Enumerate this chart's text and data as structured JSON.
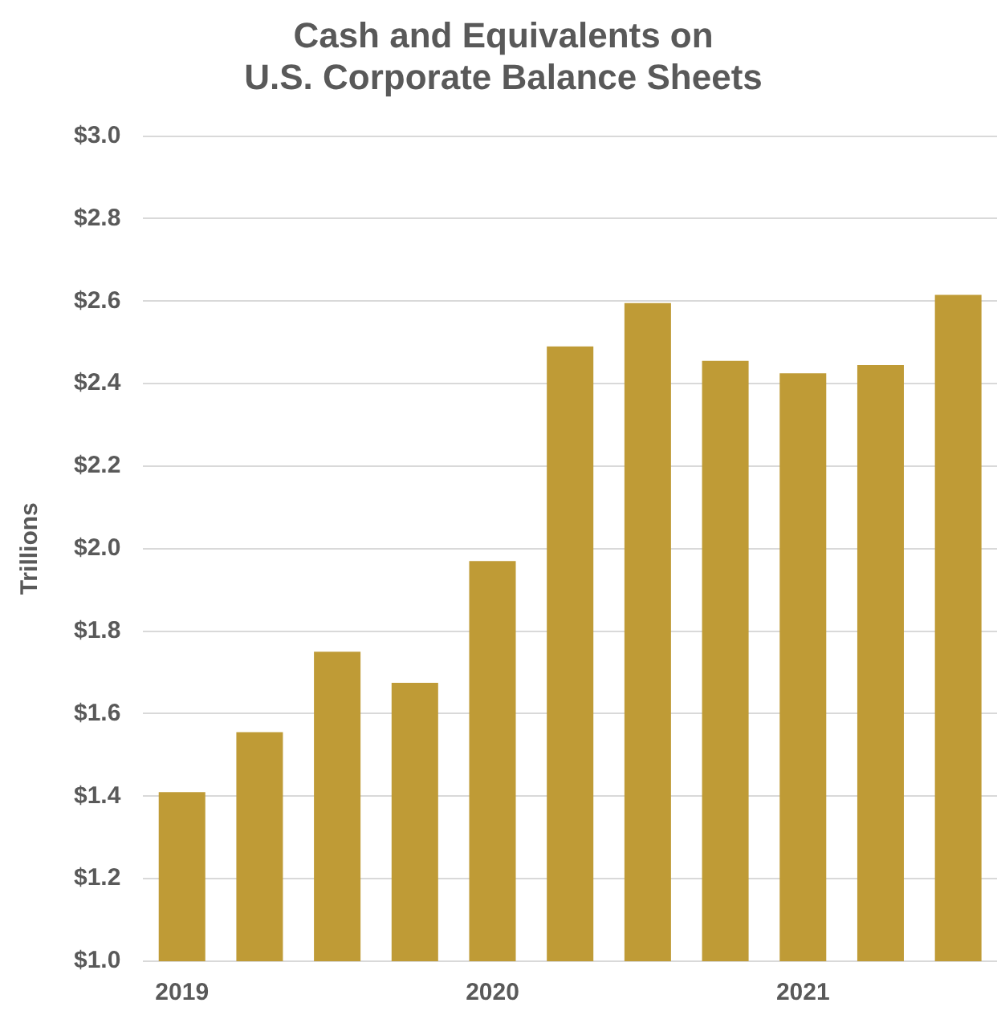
{
  "chart_data": {
    "type": "bar",
    "title": [
      "Cash and Equivalents on",
      "U.S. Corporate Balance Sheets"
    ],
    "ylabel": "Trillions",
    "categories": [
      "2019",
      null,
      null,
      null,
      "2020",
      null,
      null,
      null,
      "2021",
      null,
      null
    ],
    "values": [
      1.41,
      1.555,
      1.75,
      1.675,
      1.97,
      2.49,
      2.595,
      2.455,
      2.425,
      2.445,
      2.615
    ],
    "color": "#bf9b36",
    "ylim": [
      1.0,
      3.0
    ],
    "yticks": [
      {
        "value": 1.0,
        "label": "$1.0"
      },
      {
        "value": 1.2,
        "label": "$1.2"
      },
      {
        "value": 1.4,
        "label": "$1.4"
      },
      {
        "value": 1.6,
        "label": "$1.6"
      },
      {
        "value": 1.8,
        "label": "$1.8"
      },
      {
        "value": 2.0,
        "label": "$2.0"
      },
      {
        "value": 2.2,
        "label": "$2.2"
      },
      {
        "value": 2.4,
        "label": "$2.4"
      },
      {
        "value": 2.6,
        "label": "$2.6"
      },
      {
        "value": 2.8,
        "label": "$2.8"
      },
      {
        "value": 3.0,
        "label": "$3.0"
      }
    ],
    "grid": "y"
  }
}
